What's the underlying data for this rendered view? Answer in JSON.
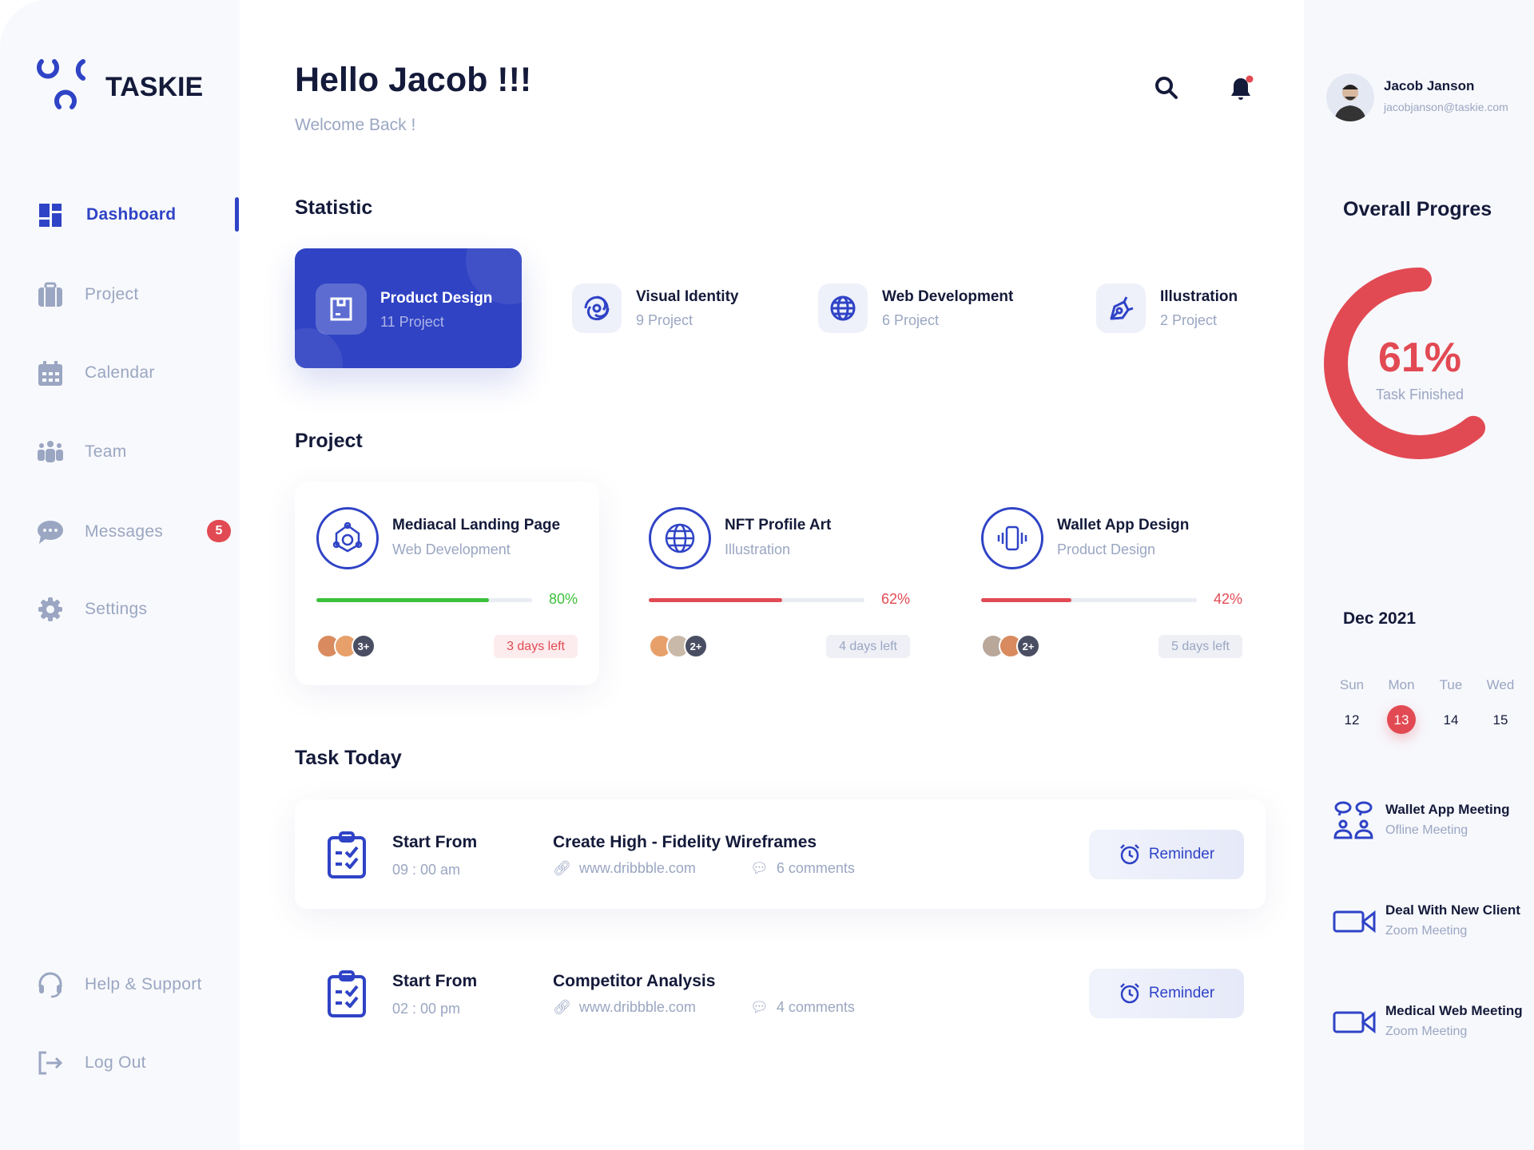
{
  "brand": {
    "name": "TASKIE",
    "accent": "#2f43c6",
    "danger": "#e24a53",
    "success": "#3cc13b"
  },
  "sidebar": {
    "items": [
      {
        "label": "Dashboard",
        "icon": "grid-icon",
        "active": true
      },
      {
        "label": "Project",
        "icon": "briefcase-icon"
      },
      {
        "label": "Calendar",
        "icon": "calendar-icon"
      },
      {
        "label": "Team",
        "icon": "team-icon"
      },
      {
        "label": "Messages",
        "icon": "chat-icon",
        "badge": "5"
      },
      {
        "label": "Settings",
        "icon": "gear-icon"
      }
    ],
    "bottom": [
      {
        "label": "Help & Support",
        "icon": "headset-icon"
      },
      {
        "label": "Log Out",
        "icon": "logout-icon"
      }
    ]
  },
  "header": {
    "title": "Hello Jacob !!!",
    "subtitle": "Welcome Back !"
  },
  "user": {
    "name": "Jacob Janson",
    "email": "jacobjanson@taskie.com"
  },
  "statistic": {
    "heading": "Statistic",
    "items": [
      {
        "title": "Product Design",
        "count": "11 Project",
        "icon": "box-icon",
        "active": true
      },
      {
        "title": "Visual Identity",
        "count": "9 Project",
        "icon": "spiral-icon"
      },
      {
        "title": "Web Development",
        "count": "6 Project",
        "icon": "globe-icon"
      },
      {
        "title": "Illustration",
        "count": "2 Project",
        "icon": "pen-tool-icon"
      }
    ]
  },
  "projects": {
    "heading": "Project",
    "items": [
      {
        "title": "Mediacal Landing Page",
        "category": "Web Development",
        "progress": 80,
        "progress_label": "80%",
        "color": "#3cc13b",
        "extra": "3+",
        "due": "3 days left",
        "urgent": true
      },
      {
        "title": "NFT Profile Art",
        "category": "Illustration",
        "progress": 62,
        "progress_label": "62%",
        "color": "#e24a53",
        "extra": "2+",
        "due": "4 days left",
        "urgent": false
      },
      {
        "title": "Wallet App Design",
        "category": "Product Design",
        "progress": 42,
        "progress_label": "42%",
        "color": "#e24a53",
        "extra": "2+",
        "due": "5 days left",
        "urgent": false
      }
    ]
  },
  "tasks": {
    "heading": "Task Today",
    "items": [
      {
        "label": "Start From",
        "time": "09 : 00 am",
        "title": "Create High - Fidelity Wireframes",
        "link": "www.dribbble.com",
        "comments": "6 comments",
        "button": "Reminder"
      },
      {
        "label": "Start From",
        "time": "02 : 00 pm",
        "title": "Competitor Analysis",
        "link": "www.dribbble.com",
        "comments": "4 comments",
        "button": "Reminder"
      }
    ]
  },
  "right": {
    "heading": "Overall Progres",
    "progress_percent": 61,
    "progress_label": "61%",
    "progress_caption": "Task Finished",
    "month": "Dec 2021",
    "weekdays": [
      "Sun",
      "Mon",
      "Tue",
      "Wed"
    ],
    "dates": [
      "12",
      "13",
      "14",
      "15"
    ],
    "selected_date": "13",
    "events": [
      {
        "title": "Wallet App Meeting",
        "type": "Ofline Meeting",
        "icon": "meeting-icon"
      },
      {
        "title": "Deal With New Client",
        "type": "Zoom Meeting",
        "icon": "video-camera-icon"
      },
      {
        "title": "Medical Web Meeting",
        "type": "Zoom Meeting",
        "icon": "video-camera-icon"
      }
    ]
  }
}
